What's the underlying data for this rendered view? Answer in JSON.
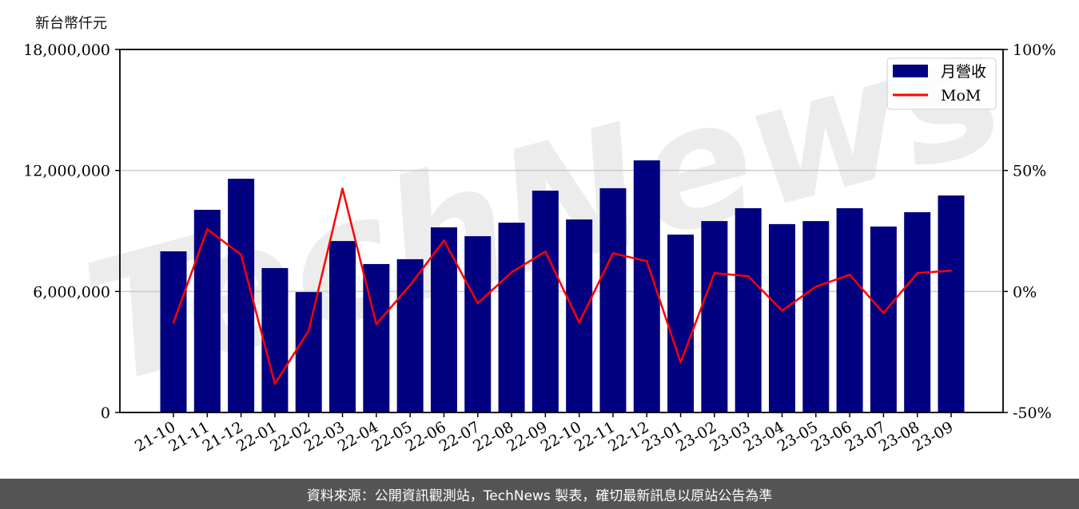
{
  "chart_data": {
    "type": "bar+line",
    "unit_label": "新台幣仟元",
    "watermark": "TechNews",
    "categories": [
      "21-10",
      "21-11",
      "21-12",
      "22-01",
      "22-02",
      "22-03",
      "22-04",
      "22-05",
      "22-06",
      "22-07",
      "22-08",
      "22-09",
      "22-10",
      "22-11",
      "22-12",
      "23-01",
      "23-02",
      "23-03",
      "23-04",
      "23-05",
      "23-06",
      "23-07",
      "23-08",
      "23-09"
    ],
    "series": [
      {
        "name": "月營收",
        "type": "bar",
        "axis": "left",
        "color": "#000080",
        "values": [
          7990000,
          10050000,
          11590000,
          7160000,
          5970000,
          8500000,
          7360000,
          7600000,
          9180000,
          8740000,
          9410000,
          11000000,
          9570000,
          11120000,
          12500000,
          8820000,
          9490000,
          10130000,
          9340000,
          9490000,
          10130000,
          9220000,
          9930000,
          10760000
        ]
      },
      {
        "name": "MoM",
        "type": "line",
        "axis": "right",
        "color": "#ff0000",
        "values": [
          -12.9,
          25.7,
          15.2,
          -38.2,
          -16.2,
          42.5,
          -13.5,
          2.6,
          21.1,
          -4.9,
          7.9,
          16.5,
          -12.9,
          15.8,
          12.5,
          -29.3,
          7.6,
          6.3,
          -7.9,
          2.0,
          6.9,
          -8.9,
          7.6,
          8.6
        ]
      }
    ],
    "y_left": {
      "range": [
        0,
        18000000
      ],
      "ticks": [
        "0",
        "6,000,000",
        "12,000,000",
        "18,000,000"
      ],
      "tick_values": [
        0,
        6000000,
        12000000,
        18000000
      ]
    },
    "y_right": {
      "range": [
        -50,
        100
      ],
      "ticks": [
        "-50%",
        "0%",
        "50%",
        "100%"
      ],
      "tick_values": [
        -50,
        0,
        50,
        100
      ]
    },
    "grid": "horizontal",
    "legend_position": "top-right"
  },
  "footer": {
    "source": "資料來源：公開資訊觀測站，TechNews 製表，確切最新訊息以原站公告為準"
  }
}
